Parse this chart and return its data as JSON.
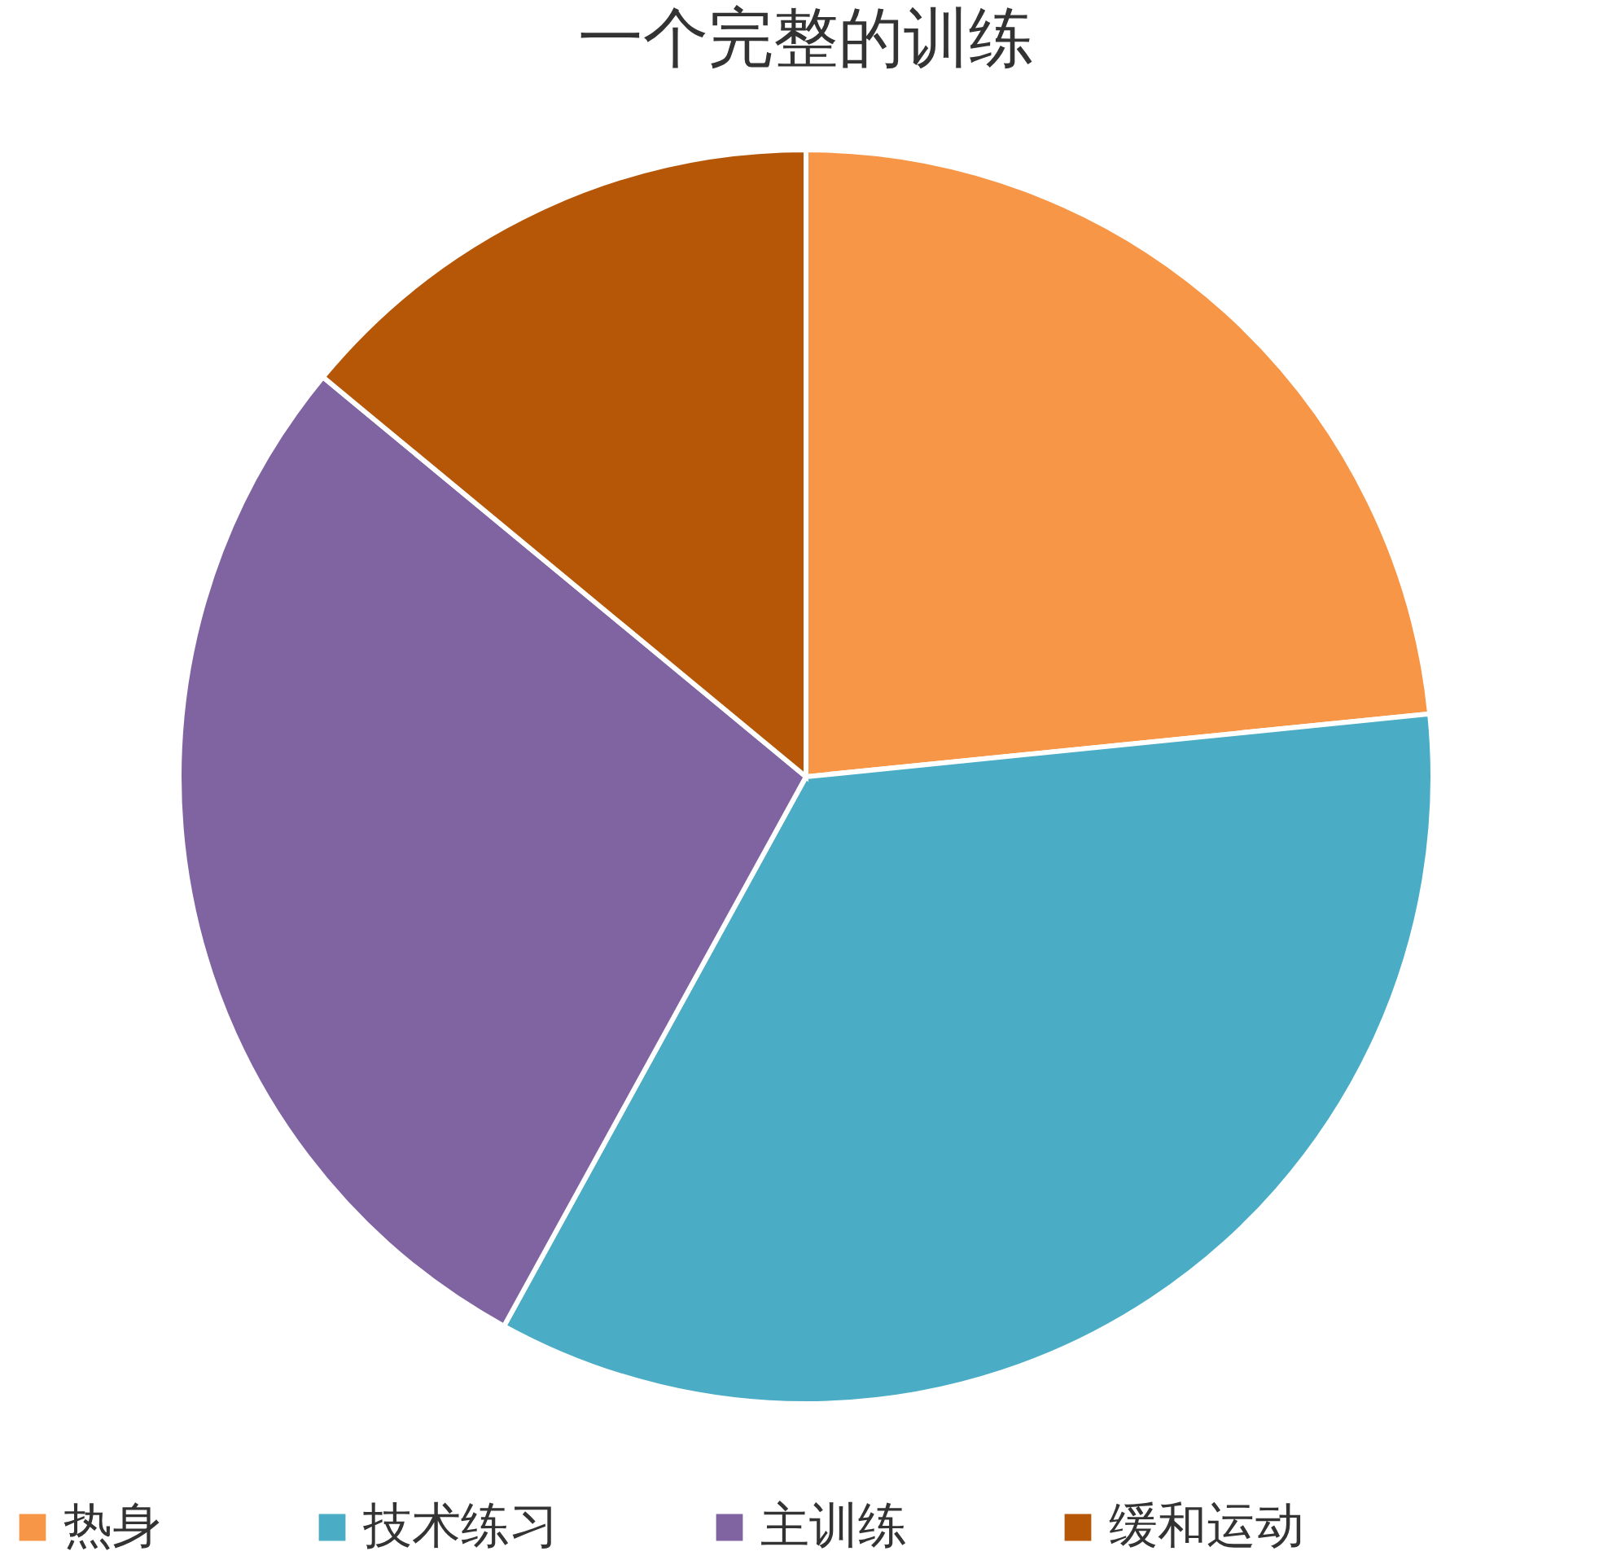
{
  "chart_data": {
    "type": "pie",
    "title": "一个完整的训练",
    "categories": [
      "热身",
      "技术练习",
      "主训练",
      "缓和运动"
    ],
    "values": [
      23.4,
      34.6,
      28.0,
      14.0
    ],
    "colors": [
      "#f79646",
      "#4bacc6",
      "#8064a2",
      "#b65708"
    ],
    "legend": "bottom"
  }
}
